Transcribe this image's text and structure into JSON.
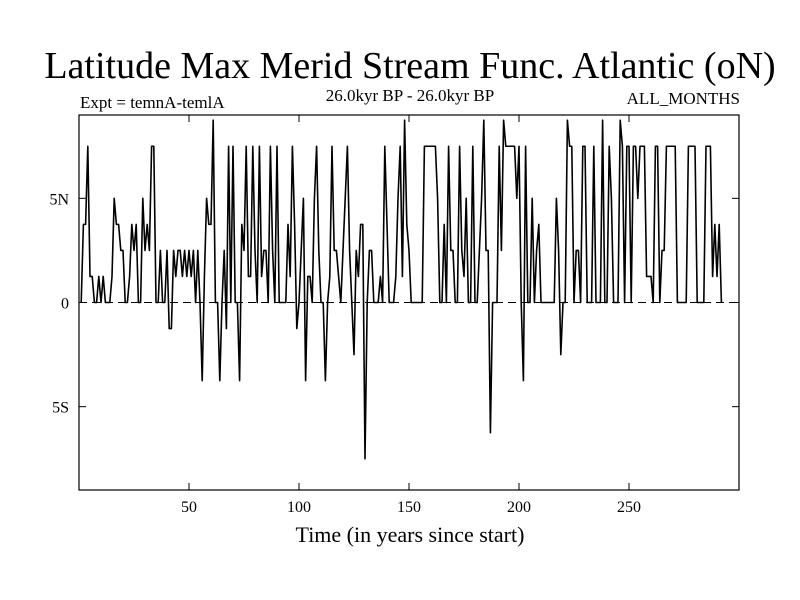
{
  "chart_data": {
    "type": "line",
    "title": "Latitude Max Merid Stream Func. Atlantic (oN)",
    "subtitle_left": "Expt = temnA-temlA",
    "subtitle_center": "26.0kyr BP - 26.0kyr BP",
    "subtitle_right": "ALL_MONTHS",
    "xlabel": "Time (in years since start)",
    "ylabel": "",
    "xlim": [
      0,
      300
    ],
    "ylim": [
      -9,
      9
    ],
    "x_ticks": [
      50,
      100,
      150,
      200,
      250
    ],
    "x_tick_labels": [
      "50",
      "100",
      "150",
      "200",
      "250"
    ],
    "y_ticks": [
      5,
      0,
      -5
    ],
    "y_tick_labels": [
      "5N",
      "0",
      "5S"
    ],
    "zero_line": "dashed",
    "grid": false,
    "series": [
      {
        "name": "Latitude Max Merid Stream Func. Atlantic",
        "x_start": 1,
        "x_step": 1,
        "values": [
          0.0,
          3.75,
          3.75,
          7.5,
          1.25,
          1.25,
          0.0,
          0.0,
          1.25,
          0.0,
          1.25,
          0.0,
          0.0,
          0.0,
          1.25,
          5.0,
          3.75,
          3.75,
          2.5,
          2.5,
          0.0,
          0.0,
          1.25,
          3.75,
          2.5,
          3.75,
          0.0,
          0.0,
          5.0,
          2.5,
          3.75,
          2.5,
          7.5,
          7.5,
          0.0,
          0.0,
          2.5,
          0.0,
          0.0,
          2.5,
          -1.25,
          -1.25,
          2.5,
          1.25,
          2.5,
          2.5,
          1.25,
          2.5,
          1.25,
          2.5,
          1.25,
          2.5,
          0.0,
          2.5,
          0.0,
          -3.75,
          1.25,
          5.0,
          3.75,
          3.75,
          8.75,
          0.0,
          0.0,
          -3.75,
          0.0,
          2.5,
          -1.25,
          7.5,
          0.0,
          7.5,
          0.0,
          0.0,
          -3.75,
          3.75,
          2.5,
          7.5,
          1.25,
          1.25,
          7.5,
          2.5,
          0.0,
          7.5,
          1.25,
          2.5,
          2.5,
          0.0,
          7.5,
          2.5,
          0.0,
          7.5,
          0.0,
          0.0,
          0.0,
          0.0,
          3.75,
          1.25,
          7.5,
          3.75,
          -1.25,
          0.0,
          2.5,
          5.0,
          -3.75,
          1.25,
          1.25,
          0.0,
          5.0,
          7.5,
          2.5,
          0.0,
          0.0,
          -3.75,
          0.0,
          1.25,
          7.5,
          2.5,
          2.5,
          1.25,
          0.0,
          2.5,
          5.0,
          7.5,
          2.5,
          0.0,
          -2.5,
          2.5,
          1.25,
          3.75,
          3.75,
          -7.5,
          0.0,
          2.5,
          2.5,
          0.0,
          0.0,
          0.0,
          1.25,
          0.0,
          7.5,
          3.75,
          0.0,
          0.0,
          0.0,
          1.25,
          5.0,
          7.5,
          1.25,
          8.75,
          3.75,
          2.5,
          0.0,
          0.0,
          0.0,
          0.0,
          0.0,
          0.0,
          7.5,
          7.5,
          7.5,
          7.5,
          7.5,
          7.5,
          5.0,
          0.0,
          0.0,
          3.75,
          0.0,
          7.5,
          2.5,
          2.5,
          0.0,
          0.0,
          7.5,
          2.5,
          1.25,
          5.0,
          0.0,
          0.0,
          7.5,
          0.0,
          0.0,
          2.5,
          5.0,
          8.75,
          2.5,
          2.5,
          -6.25,
          0.0,
          0.0,
          0.0,
          7.5,
          2.5,
          8.75,
          7.5,
          7.5,
          7.5,
          7.5,
          7.5,
          5.0,
          7.5,
          0.0,
          -3.75,
          7.5,
          0.0,
          0.0,
          5.0,
          0.0,
          2.5,
          3.75,
          0.0,
          0.0,
          0.0,
          0.0,
          0.0,
          0.0,
          0.0,
          5.0,
          2.5,
          -2.5,
          0.0,
          0.0,
          8.75,
          7.5,
          7.5,
          0.0,
          2.5,
          2.5,
          0.0,
          7.5,
          7.5,
          0.0,
          0.0,
          0.0,
          7.5,
          0.0,
          0.0,
          0.0,
          8.75,
          0.0,
          0.0,
          7.5,
          5.0,
          0.0,
          0.0,
          0.0,
          8.75,
          7.5,
          0.0,
          7.5,
          7.5,
          0.0,
          7.5,
          7.5,
          5.0,
          7.5,
          7.5,
          7.5,
          1.25,
          1.25,
          1.25,
          0.0,
          7.5,
          7.5,
          0.0,
          2.5,
          2.5,
          7.5,
          7.5,
          7.5,
          7.5,
          7.5,
          0.0,
          0.0,
          0.0,
          0.0,
          0.0,
          7.5,
          7.5,
          7.5,
          7.5,
          0.0,
          0.0,
          0.0,
          0.0,
          7.5,
          7.5,
          7.5,
          1.25,
          3.75,
          1.25,
          3.75,
          0.0
        ]
      }
    ]
  }
}
